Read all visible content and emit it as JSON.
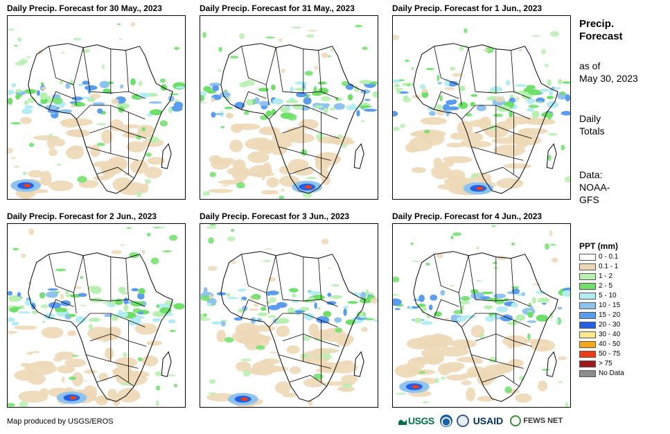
{
  "panels": [
    {
      "title": "Daily Precip. Forecast for 30 May., 2023"
    },
    {
      "title": "Daily Precip. Forecast for 31 May., 2023"
    },
    {
      "title": "Daily Precip. Forecast for 1 Jun., 2023"
    },
    {
      "title": "Daily Precip. Forecast for 2 Jun., 2023"
    },
    {
      "title": "Daily Precip. Forecast for 3 Jun., 2023"
    },
    {
      "title": "Daily Precip. Forecast for 4 Jun., 2023"
    }
  ],
  "side": {
    "title_line1": "Precip.",
    "title_line2": "Forecast",
    "asof_line1": "as of",
    "asof_line2": "May 30, 2023",
    "totals_line1": "Daily",
    "totals_line2": "Totals",
    "source_line1": "Data:",
    "source_line2": "NOAA-",
    "source_line3": "GFS"
  },
  "legend": {
    "title": "PPT (mm)",
    "items": [
      {
        "label": "0 - 0.1",
        "color": "#ffffff"
      },
      {
        "label": "0.1 - 1",
        "color": "#ecd8b6"
      },
      {
        "label": "1 - 2",
        "color": "#b7f0b0"
      },
      {
        "label": "2 - 5",
        "color": "#6ee06a"
      },
      {
        "label": "5 - 10",
        "color": "#b4ecf4"
      },
      {
        "label": "10 - 15",
        "color": "#8fc3ef"
      },
      {
        "label": "15 - 20",
        "color": "#5a9cef"
      },
      {
        "label": "20 - 30",
        "color": "#2460e6"
      },
      {
        "label": "30 - 40",
        "color": "#fbe98b"
      },
      {
        "label": "40 - 50",
        "color": "#f5a818"
      },
      {
        "label": "50 - 75",
        "color": "#ee3d12"
      },
      {
        "label": "> 75",
        "color": "#a11a1a"
      },
      {
        "label": "No Data",
        "color": "#8c8c8c"
      }
    ]
  },
  "credit": "Map produced by USGS/EROS",
  "logos": {
    "usgs": "USGS",
    "usaid": "USAID",
    "fews": "FEWS NET"
  }
}
